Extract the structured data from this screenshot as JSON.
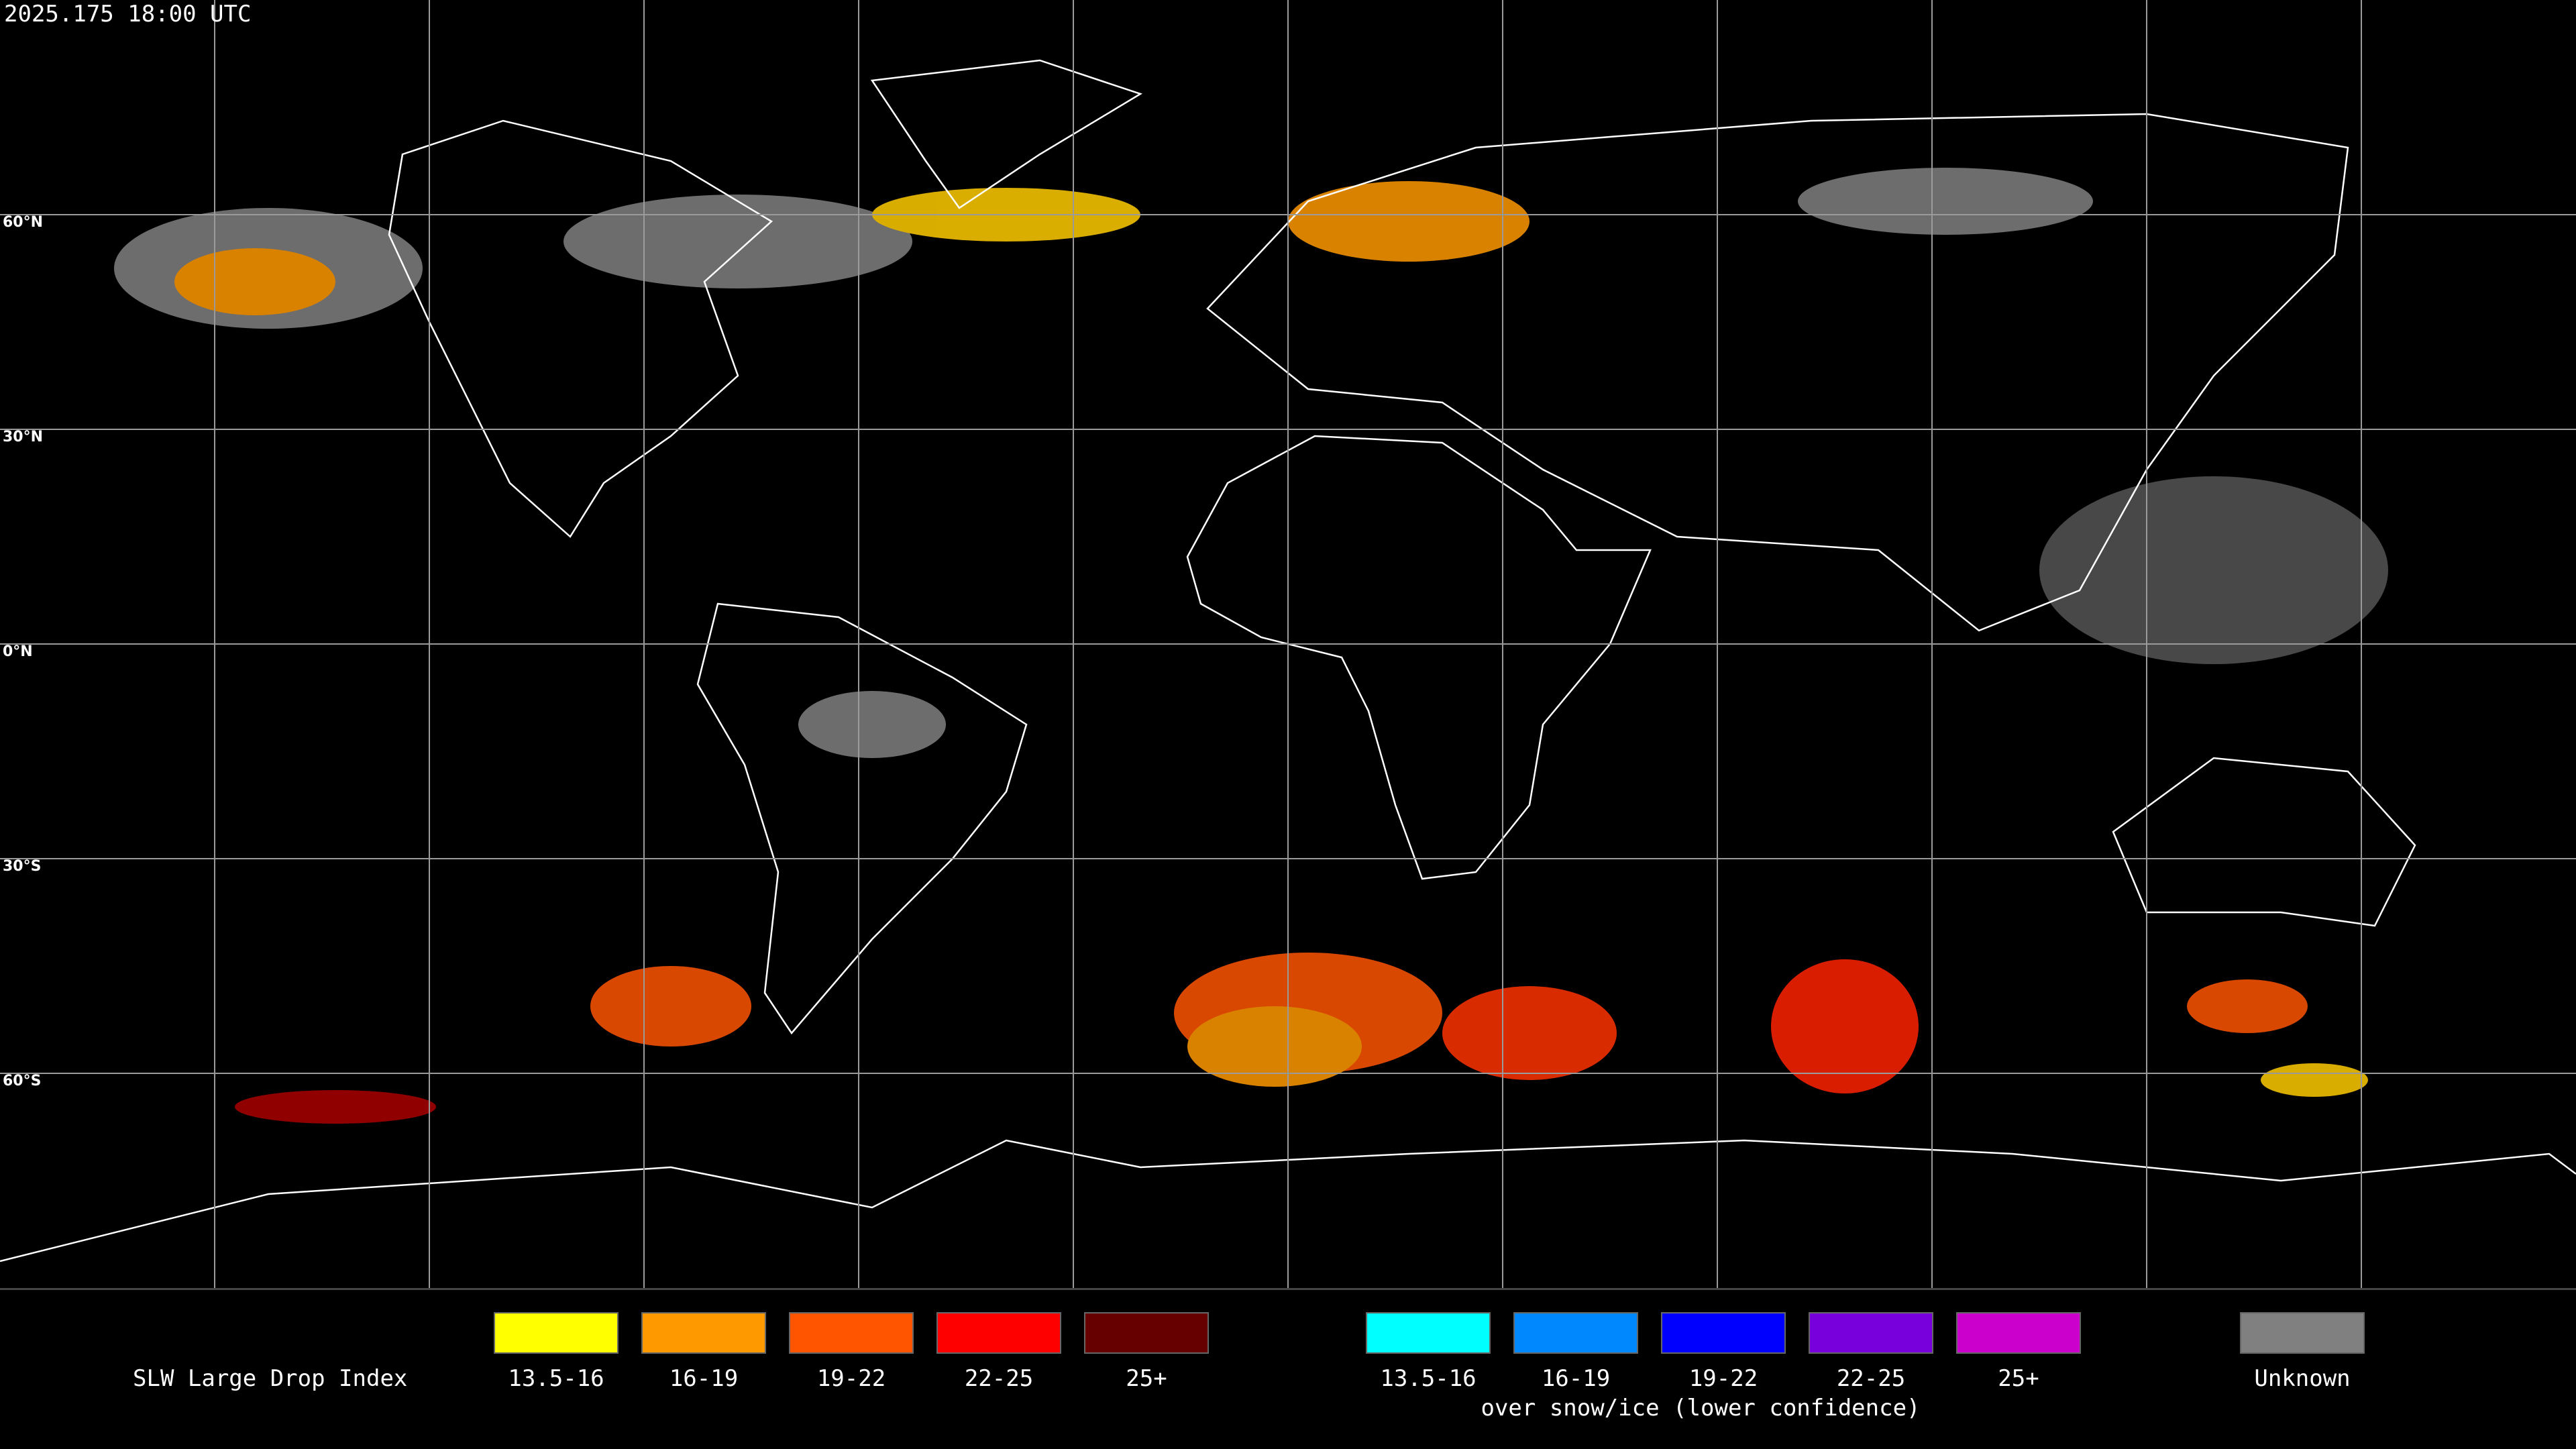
{
  "timestamp": "2025.175 18:00 UTC",
  "latitude_labels": [
    "60°N",
    "30°N",
    "0°N",
    "30°S",
    "60°S"
  ],
  "legend": {
    "title": "SLW Large Drop Index",
    "items": [
      {
        "label": "13.5-16",
        "color": "#ffff00"
      },
      {
        "label": "16-19",
        "color": "#ff9900"
      },
      {
        "label": "19-22",
        "color": "#ff5500"
      },
      {
        "label": "22-25",
        "color": "#ff0000"
      },
      {
        "label": "25+",
        "color": "#660000"
      }
    ],
    "snow_items": [
      {
        "label": "13.5-16",
        "color": "#00ffff"
      },
      {
        "label": "16-19",
        "color": "#0088ff"
      },
      {
        "label": "19-22",
        "color": "#0000ff"
      },
      {
        "label": "22-25",
        "color": "#7700dd"
      },
      {
        "label": "25+",
        "color": "#cc00cc"
      }
    ],
    "snow_note": "over snow/ice (lower confidence)",
    "unknown": {
      "label": "Unknown",
      "color": "#808080"
    }
  }
}
